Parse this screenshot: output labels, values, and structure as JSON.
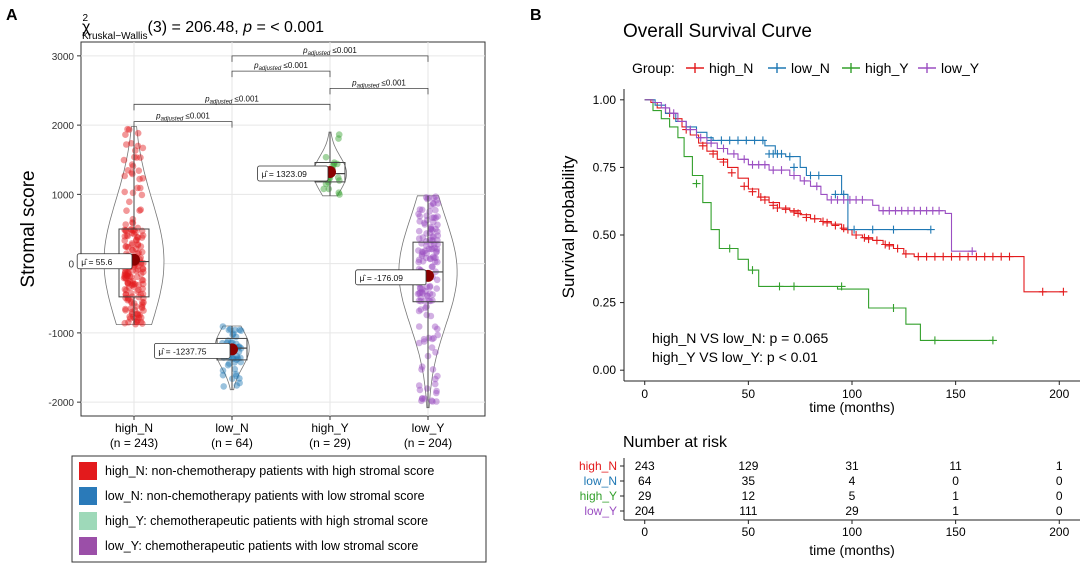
{
  "colors": {
    "high_N": "#e31a1c",
    "low_N": "#1f78b4",
    "high_Y": "#33a02c",
    "low_Y": "#9b4fc2",
    "legend_high_N": "#e31a1c",
    "legend_low_N": "#2a7ab9",
    "legend_high_Y": "#9ed9b9",
    "legend_low_Y": "#9b4fa8",
    "mean_point": "#8b0000"
  },
  "panel_a": {
    "panel_label": "A",
    "stat_chi": "χ",
    "stat_sup": "2",
    "stat_sub": "Kruskal−Wallis",
    "stat_rest": "(3) = 206.48, ",
    "stat_p": "p",
    "stat_tail": " = < 0.001",
    "padj_main": "p",
    "padj_sub": "adjusted",
    "padj_val": "≤0.001",
    "legend": [
      {
        "key": "high_N",
        "text": "high_N:  non-chemotherapy patients with high stromal score"
      },
      {
        "key": "low_N",
        "text": "low_N:  non-chemotherapy patients with low stromal score"
      },
      {
        "key": "high_Y",
        "text": "high_Y:  chemotherapeutic patients with high stromal score"
      },
      {
        "key": "low_Y",
        "text": "low_Y:  chemotherapeutic patients with low stromal score"
      }
    ],
    "mu_symbol": "μ̂ = "
  },
  "panel_b": {
    "panel_label": "B",
    "title": "Overall Survival Curve",
    "group_label": "Group:",
    "annotation_1": "high_N VS low_N: p = 0.065",
    "annotation_2": "high_Y VS low_Y: p < 0.01",
    "risk_title": "Number at risk"
  },
  "chart_data": [
    {
      "type": "violin_box",
      "ylabel": "Stromal score",
      "xlabel": "",
      "ylim": [
        -2200,
        3200
      ],
      "yticks": [
        -2000,
        -1000,
        0,
        1000,
        2000,
        3000
      ],
      "grid": true,
      "groups": [
        {
          "name": "high_N",
          "n_label": "(n = 243)",
          "mean": 55.6,
          "mean_label": "55.6",
          "q1": -480,
          "median": 30,
          "q3": 500,
          "min": -880,
          "max": 1980
        },
        {
          "name": "low_N",
          "n_label": "(n = 64)",
          "mean": -1237.75,
          "mean_label": "-1237.75",
          "q1": -1390,
          "median": -1220,
          "q3": -1080,
          "min": -1820,
          "max": -900
        },
        {
          "name": "high_Y",
          "n_label": "(n = 29)",
          "mean": 1323.09,
          "mean_label": "1323.09",
          "q1": 1180,
          "median": 1300,
          "q3": 1460,
          "min": 980,
          "max": 1900
        },
        {
          "name": "low_Y",
          "n_label": "(n = 204)",
          "mean": -176.09,
          "mean_label": "-176.09",
          "q1": -550,
          "median": -120,
          "q3": 310,
          "min": -2080,
          "max": 980
        }
      ],
      "comparisons": [
        {
          "from": "high_N",
          "to": "low_N",
          "y": 2050
        },
        {
          "from": "high_N",
          "to": "high_Y",
          "y": 2300
        },
        {
          "from": "low_N",
          "to": "high_Y",
          "y": 2780
        },
        {
          "from": "high_Y",
          "to": "low_Y",
          "y": 2530
        },
        {
          "from": "low_N",
          "to": "low_Y",
          "y": 3000
        }
      ]
    },
    {
      "type": "line",
      "subtype": "kaplan_meier",
      "title": "Overall Survival Curve",
      "xlabel": "time (months)",
      "ylabel": "Survival probability",
      "xlim": [
        -10,
        210
      ],
      "ylim": [
        -0.04,
        1.04
      ],
      "xticks": [
        0,
        50,
        100,
        150,
        200
      ],
      "yticks": [
        0.0,
        0.25,
        0.5,
        0.75,
        1.0
      ],
      "ytick_labels": [
        "0.00",
        "0.25",
        "0.50",
        "0.75",
        "1.00"
      ],
      "series": [
        {
          "name": "high_N",
          "steps": [
            [
              0,
              1.0
            ],
            [
              3,
              0.99
            ],
            [
              6,
              0.97
            ],
            [
              10,
              0.95
            ],
            [
              14,
              0.93
            ],
            [
              18,
              0.9
            ],
            [
              22,
              0.87
            ],
            [
              26,
              0.84
            ],
            [
              30,
              0.81
            ],
            [
              35,
              0.78
            ],
            [
              40,
              0.75
            ],
            [
              45,
              0.71
            ],
            [
              50,
              0.67
            ],
            [
              55,
              0.64
            ],
            [
              60,
              0.62
            ],
            [
              65,
              0.6
            ],
            [
              70,
              0.59
            ],
            [
              75,
              0.575
            ],
            [
              80,
              0.56
            ],
            [
              85,
              0.55
            ],
            [
              90,
              0.54
            ],
            [
              95,
              0.52
            ],
            [
              100,
              0.5
            ],
            [
              105,
              0.49
            ],
            [
              110,
              0.48
            ],
            [
              115,
              0.465
            ],
            [
              120,
              0.45
            ],
            [
              125,
              0.43
            ],
            [
              130,
              0.42
            ],
            [
              183,
              0.29
            ],
            [
              202,
              0.29
            ]
          ],
          "censors": [
            [
              12,
              0.95
            ],
            [
              20,
              0.89
            ],
            [
              28,
              0.83
            ],
            [
              33,
              0.8
            ],
            [
              38,
              0.77
            ],
            [
              42,
              0.73
            ],
            [
              48,
              0.68
            ],
            [
              52,
              0.66
            ],
            [
              56,
              0.64
            ],
            [
              58,
              0.63
            ],
            [
              62,
              0.61
            ],
            [
              64,
              0.6
            ],
            [
              68,
              0.595
            ],
            [
              72,
              0.585
            ],
            [
              74,
              0.58
            ],
            [
              78,
              0.565
            ],
            [
              82,
              0.56
            ],
            [
              86,
              0.55
            ],
            [
              88,
              0.545
            ],
            [
              92,
              0.535
            ],
            [
              96,
              0.525
            ],
            [
              98,
              0.52
            ],
            [
              102,
              0.5
            ],
            [
              106,
              0.49
            ],
            [
              108,
              0.485
            ],
            [
              112,
              0.48
            ],
            [
              116,
              0.465
            ],
            [
              118,
              0.46
            ],
            [
              122,
              0.45
            ],
            [
              126,
              0.43
            ],
            [
              132,
              0.42
            ],
            [
              136,
              0.42
            ],
            [
              140,
              0.42
            ],
            [
              144,
              0.42
            ],
            [
              148,
              0.42
            ],
            [
              152,
              0.42
            ],
            [
              156,
              0.42
            ],
            [
              160,
              0.42
            ],
            [
              164,
              0.42
            ],
            [
              168,
              0.42
            ],
            [
              172,
              0.42
            ],
            [
              176,
              0.42
            ],
            [
              192,
              0.29
            ],
            [
              202,
              0.29
            ]
          ]
        },
        {
          "name": "low_N",
          "steps": [
            [
              0,
              1.0
            ],
            [
              5,
              0.98
            ],
            [
              10,
              0.95
            ],
            [
              15,
              0.92
            ],
            [
              20,
              0.9
            ],
            [
              25,
              0.88
            ],
            [
              30,
              0.86
            ],
            [
              33,
              0.85
            ],
            [
              58,
              0.83
            ],
            [
              63,
              0.8
            ],
            [
              68,
              0.79
            ],
            [
              75,
              0.75
            ],
            [
              78,
              0.72
            ],
            [
              95,
              0.65
            ],
            [
              98,
              0.52
            ],
            [
              130,
              0.52
            ],
            [
              138,
              0.52
            ]
          ],
          "censors": [
            [
              32,
              0.85
            ],
            [
              37,
              0.85
            ],
            [
              41,
              0.85
            ],
            [
              45,
              0.85
            ],
            [
              49,
              0.85
            ],
            [
              53,
              0.85
            ],
            [
              57,
              0.85
            ],
            [
              60,
              0.8
            ],
            [
              62,
              0.8
            ],
            [
              64,
              0.8
            ],
            [
              66,
              0.8
            ],
            [
              70,
              0.79
            ],
            [
              72,
              0.75
            ],
            [
              80,
              0.72
            ],
            [
              84,
              0.72
            ],
            [
              92,
              0.65
            ],
            [
              96,
              0.65
            ],
            [
              101,
              0.52
            ],
            [
              110,
              0.52
            ],
            [
              120,
              0.52
            ],
            [
              138,
              0.52
            ]
          ]
        },
        {
          "name": "high_Y",
          "steps": [
            [
              0,
              1.0
            ],
            [
              4,
              0.96
            ],
            [
              8,
              0.93
            ],
            [
              12,
              0.9
            ],
            [
              16,
              0.86
            ],
            [
              19,
              0.79
            ],
            [
              23,
              0.72
            ],
            [
              28,
              0.62
            ],
            [
              32,
              0.52
            ],
            [
              36,
              0.45
            ],
            [
              45,
              0.41
            ],
            [
              50,
              0.37
            ],
            [
              55,
              0.31
            ],
            [
              93,
              0.3
            ],
            [
              108,
              0.23
            ],
            [
              126,
              0.17
            ],
            [
              133,
              0.11
            ],
            [
              168,
              0.11
            ]
          ],
          "censors": [
            [
              25,
              0.69
            ],
            [
              41,
              0.45
            ],
            [
              52,
              0.37
            ],
            [
              65,
              0.31
            ],
            [
              72,
              0.31
            ],
            [
              95,
              0.31
            ],
            [
              120,
              0.23
            ],
            [
              140,
              0.11
            ],
            [
              168,
              0.11
            ]
          ]
        },
        {
          "name": "low_Y",
          "steps": [
            [
              0,
              1.0
            ],
            [
              4,
              0.99
            ],
            [
              8,
              0.97
            ],
            [
              12,
              0.95
            ],
            [
              16,
              0.92
            ],
            [
              20,
              0.89
            ],
            [
              25,
              0.86
            ],
            [
              30,
              0.84
            ],
            [
              35,
              0.82
            ],
            [
              40,
              0.8
            ],
            [
              45,
              0.78
            ],
            [
              50,
              0.76
            ],
            [
              60,
              0.74
            ],
            [
              70,
              0.72
            ],
            [
              75,
              0.7
            ],
            [
              80,
              0.68
            ],
            [
              85,
              0.65
            ],
            [
              88,
              0.63
            ],
            [
              110,
              0.61
            ],
            [
              113,
              0.59
            ],
            [
              145,
              0.58
            ],
            [
              148,
              0.44
            ],
            [
              160,
              0.44
            ]
          ],
          "censors": [
            [
              10,
              0.97
            ],
            [
              14,
              0.95
            ],
            [
              22,
              0.89
            ],
            [
              27,
              0.86
            ],
            [
              32,
              0.84
            ],
            [
              38,
              0.82
            ],
            [
              43,
              0.8
            ],
            [
              48,
              0.78
            ],
            [
              52,
              0.76
            ],
            [
              55,
              0.76
            ],
            [
              58,
              0.76
            ],
            [
              62,
              0.74
            ],
            [
              66,
              0.74
            ],
            [
              72,
              0.72
            ],
            [
              77,
              0.7
            ],
            [
              83,
              0.68
            ],
            [
              90,
              0.63
            ],
            [
              93,
              0.63
            ],
            [
              96,
              0.63
            ],
            [
              99,
              0.63
            ],
            [
              102,
              0.63
            ],
            [
              105,
              0.63
            ],
            [
              115,
              0.59
            ],
            [
              118,
              0.59
            ],
            [
              121,
              0.59
            ],
            [
              124,
              0.59
            ],
            [
              127,
              0.59
            ],
            [
              130,
              0.59
            ],
            [
              133,
              0.59
            ],
            [
              136,
              0.59
            ],
            [
              139,
              0.59
            ],
            [
              142,
              0.59
            ],
            [
              158,
              0.44
            ]
          ]
        }
      ],
      "risk_table": {
        "times": [
          0,
          50,
          100,
          150,
          200
        ],
        "rows": [
          {
            "name": "high_N",
            "values": [
              243,
              129,
              31,
              11,
              1
            ]
          },
          {
            "name": "low_N",
            "values": [
              64,
              35,
              4,
              0,
              0
            ]
          },
          {
            "name": "high_Y",
            "values": [
              29,
              12,
              5,
              1,
              0
            ]
          },
          {
            "name": "low_Y",
            "values": [
              204,
              111,
              29,
              1,
              0
            ]
          }
        ]
      }
    }
  ]
}
